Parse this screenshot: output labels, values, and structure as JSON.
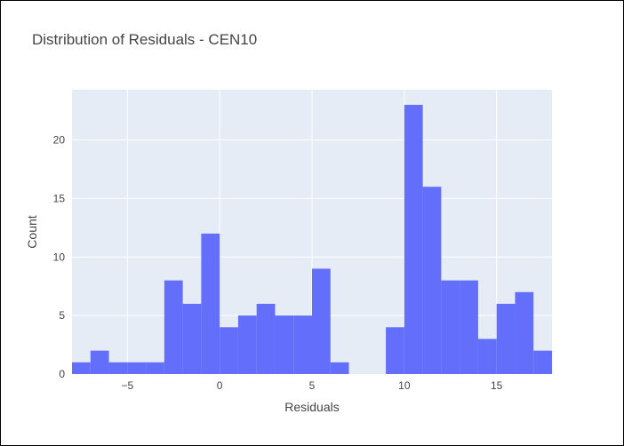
{
  "chart_data": {
    "type": "bar",
    "title": "Distribution of Residuals - CEN10",
    "xlabel": "Residuals",
    "ylabel": "Count",
    "bin_width": 1,
    "bin_starts": [
      -8,
      -7,
      -6,
      -5,
      -4,
      -3,
      -2,
      -1,
      0,
      1,
      2,
      3,
      4,
      5,
      6,
      7,
      8,
      9,
      10,
      11,
      12,
      13,
      14,
      15,
      16,
      17
    ],
    "values": [
      1,
      2,
      1,
      1,
      1,
      8,
      6,
      12,
      4,
      5,
      6,
      5,
      5,
      9,
      1,
      0,
      0,
      4,
      23,
      16,
      8,
      8,
      3,
      6,
      7,
      2
    ],
    "xlim": [
      -8,
      18
    ],
    "ylim": [
      0,
      23
    ],
    "x_ticks": [
      -5,
      0,
      5,
      10,
      15
    ],
    "x_tick_labels": [
      "−5",
      "0",
      "5",
      "10",
      "15"
    ],
    "y_ticks": [
      0,
      5,
      10,
      15,
      20
    ],
    "y_tick_labels": [
      "0",
      "5",
      "10",
      "15",
      "20"
    ],
    "grid": true,
    "bar_color": "#636efa",
    "plot_bg": "#e5ecf6"
  }
}
